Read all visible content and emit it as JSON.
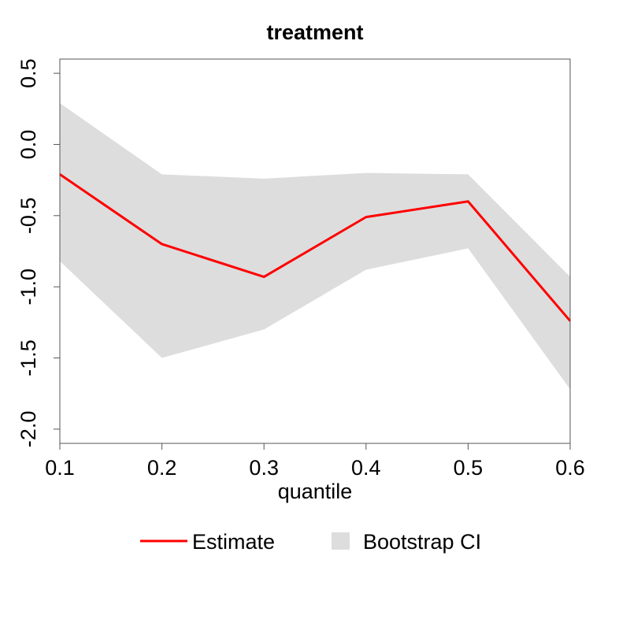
{
  "chart_data": {
    "type": "line",
    "title": "treatment",
    "xlabel": "quantile",
    "ylabel": "",
    "x": [
      0.1,
      0.2,
      0.3,
      0.4,
      0.5,
      0.6
    ],
    "x_ticks": [
      "0.1",
      "0.2",
      "0.3",
      "0.4",
      "0.5",
      "0.6"
    ],
    "y_ticks": [
      "-2.0",
      "-1.5",
      "-1.0",
      "-0.5",
      "0.0",
      "0.5"
    ],
    "xlim": [
      0.1,
      0.6
    ],
    "ylim": [
      -2.1,
      0.6
    ],
    "series": [
      {
        "name": "Estimate",
        "type": "line",
        "color": "#ff0000",
        "values": [
          -0.21,
          -0.7,
          -0.93,
          -0.51,
          -0.4,
          -1.24
        ]
      },
      {
        "name": "Bootstrap CI",
        "type": "band",
        "color": "#dddddd",
        "lower": [
          -0.82,
          -1.5,
          -1.3,
          -0.88,
          -0.73,
          -1.72
        ],
        "upper": [
          0.29,
          -0.21,
          -0.24,
          -0.2,
          -0.21,
          -0.93
        ]
      }
    ],
    "grid": false,
    "legend_position": "bottom"
  }
}
